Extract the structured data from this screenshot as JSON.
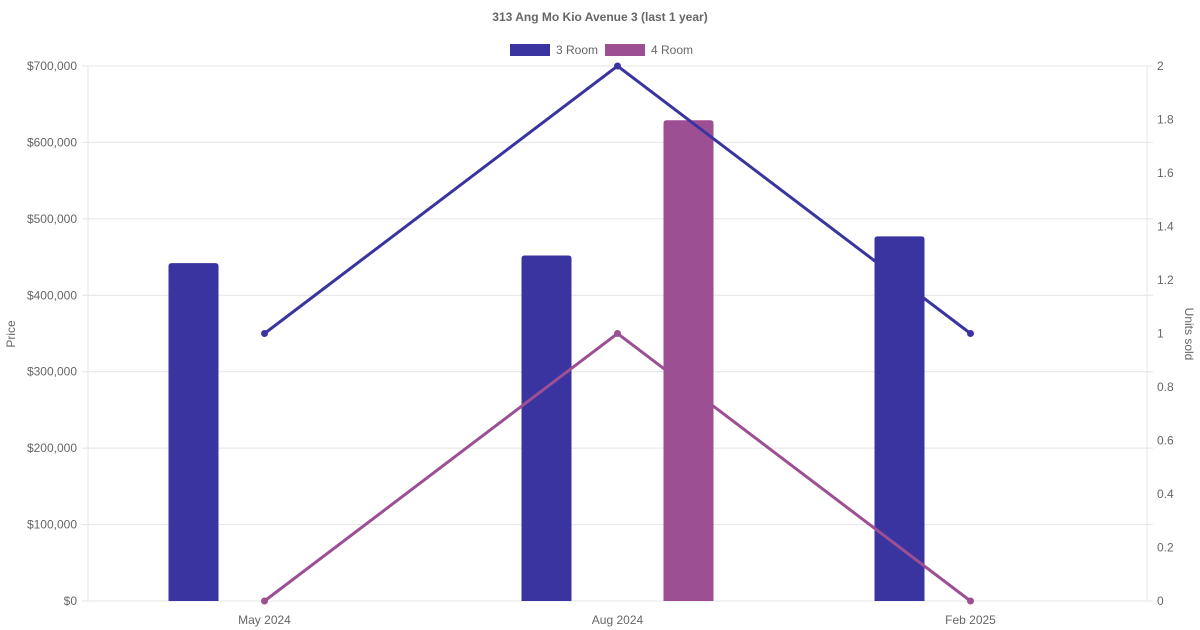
{
  "chart_data": {
    "type": "bar",
    "title": "313 Ang Mo Kio Avenue 3 (last 1 year)",
    "categories": [
      "May 2024",
      "Aug 2024",
      "Feb 2025"
    ],
    "y_left": {
      "label": "Price",
      "ylim": [
        0,
        700000
      ],
      "ticks": [
        0,
        100000,
        200000,
        300000,
        400000,
        500000,
        600000,
        700000
      ],
      "tick_labels": [
        "$0",
        "$100,000",
        "$200,000",
        "$300,000",
        "$400,000",
        "$500,000",
        "$600,000",
        "$700,000"
      ]
    },
    "y_right": {
      "label": "Units sold",
      "ylim": [
        0,
        2
      ],
      "ticks": [
        0,
        0.2,
        0.4,
        0.6,
        0.8,
        1,
        1.2,
        1.4,
        1.6,
        1.8,
        2
      ],
      "tick_labels": [
        "0",
        "0.2",
        "0.4",
        "0.6",
        "0.8",
        "1",
        "1.2",
        "1.4",
        "1.6",
        "1.8",
        "2"
      ]
    },
    "grid": true,
    "legend_position": "top-center",
    "series": [
      {
        "name": "3 Room",
        "color": "#3a34a0",
        "price_values": [
          442000,
          452000,
          477000
        ],
        "units_sold": [
          1,
          2,
          1
        ]
      },
      {
        "name": "4 Room",
        "color": "#9d4f93",
        "price_values": [
          null,
          629000,
          null
        ],
        "units_sold": [
          0,
          1,
          0
        ]
      }
    ]
  }
}
